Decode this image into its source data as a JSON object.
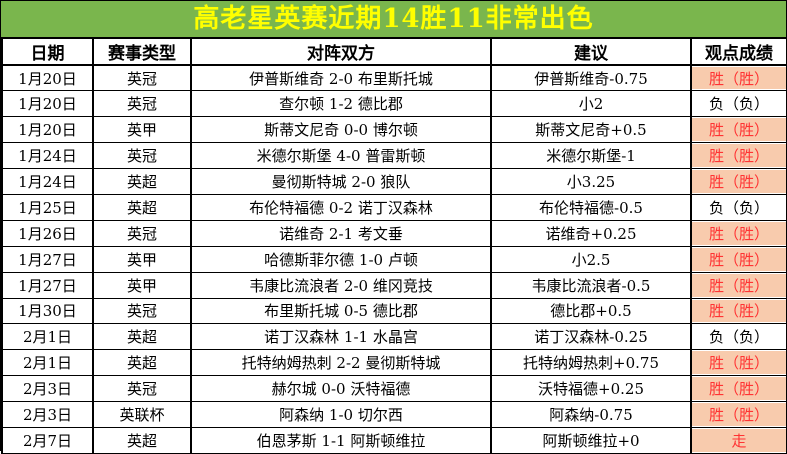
{
  "title": "高老星英赛近期14胜11非常出色",
  "colors": {
    "title_bg": "#7ab64d",
    "title_text": "#ffff00",
    "win_bg": "#f8cbad",
    "win_text": "#ff3333",
    "loss_text": "#000000",
    "border": "#000000"
  },
  "table": {
    "headers": [
      "日期",
      "赛事类型",
      "对阵双方",
      "建议",
      "观点成绩"
    ],
    "rows": [
      {
        "date": "1月20日",
        "league": "英冠",
        "match": "伊普斯维奇 2-0 布里斯托城",
        "tip": "伊普斯维奇-0.75",
        "result": "胜（胜）",
        "win": true
      },
      {
        "date": "1月20日",
        "league": "英冠",
        "match": "查尔顿 1-2 德比郡",
        "tip": "小2",
        "result": "负（负）",
        "win": false
      },
      {
        "date": "1月20日",
        "league": "英甲",
        "match": "斯蒂文尼奇 0-0 博尔顿",
        "tip": "斯蒂文尼奇+0.5",
        "result": "胜（胜）",
        "win": true
      },
      {
        "date": "1月24日",
        "league": "英冠",
        "match": "米德尔斯堡 4-0 普雷斯顿",
        "tip": "米德尔斯堡-1",
        "result": "胜（胜）",
        "win": true
      },
      {
        "date": "1月24日",
        "league": "英超",
        "match": "曼彻斯特城 2-0 狼队",
        "tip": "小3.25",
        "result": "胜（胜）",
        "win": true
      },
      {
        "date": "1月25日",
        "league": "英超",
        "match": "布伦特福德 0-2 诺丁汉森林",
        "tip": "布伦特福德-0.5",
        "result": "负（负）",
        "win": false
      },
      {
        "date": "1月26日",
        "league": "英冠",
        "match": "诺维奇 2-1 考文垂",
        "tip": "诺维奇+0.25",
        "result": "胜（胜）",
        "win": true
      },
      {
        "date": "1月27日",
        "league": "英甲",
        "match": "哈德斯菲尔德 1-0 卢顿",
        "tip": "小2.5",
        "result": "胜（胜）",
        "win": true
      },
      {
        "date": "1月27日",
        "league": "英甲",
        "match": "韦康比流浪者 2-0 维冈竞技",
        "tip": "韦康比流浪者-0.5",
        "result": "胜（胜）",
        "win": true
      },
      {
        "date": "1月30日",
        "league": "英冠",
        "match": "布里斯托城 0-5 德比郡",
        "tip": "德比郡+0.5",
        "result": "胜（胜）",
        "win": true
      },
      {
        "date": "2月1日",
        "league": "英超",
        "match": "诺丁汉森林 1-1 水晶宫",
        "tip": "诺丁汉森林-0.25",
        "result": "负（负）",
        "win": false
      },
      {
        "date": "2月1日",
        "league": "英超",
        "match": "托特纳姆热刺 2-2 曼彻斯特城",
        "tip": "托特纳姆热刺+0.75",
        "result": "胜（胜）",
        "win": true
      },
      {
        "date": "2月3日",
        "league": "英冠",
        "match": "赫尔城 0-0 沃特福德",
        "tip": "沃特福德+0.25",
        "result": "胜（胜）",
        "win": true
      },
      {
        "date": "2月3日",
        "league": "英联杯",
        "match": "阿森纳 1-0 切尔西",
        "tip": "阿森纳-0.75",
        "result": "胜（胜）",
        "win": true
      },
      {
        "date": "2月7日",
        "league": "英超",
        "match": "伯恩茅斯 1-1 阿斯顿维拉",
        "tip": "阿斯顿维拉+0",
        "result": "走",
        "win": true
      }
    ]
  }
}
